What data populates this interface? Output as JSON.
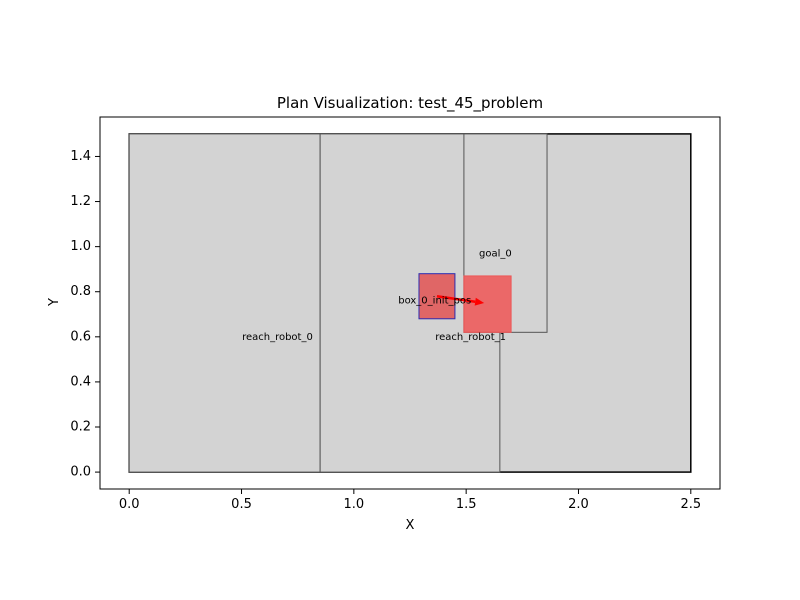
{
  "chart_data": {
    "type": "diagram",
    "title": "Plan Visualization: test_45_problem",
    "xlabel": "X",
    "ylabel": "Y",
    "xlim": [
      -0.13,
      2.63
    ],
    "ylim": [
      -0.075,
      1.575
    ],
    "xticks": [
      0.0,
      0.5,
      1.0,
      1.5,
      2.0,
      2.5
    ],
    "xtick_labels": [
      "0.0",
      "0.5",
      "1.0",
      "1.5",
      "2.0",
      "2.5"
    ],
    "yticks": [
      0.0,
      0.2,
      0.4,
      0.6,
      0.8,
      1.0,
      1.2,
      1.4
    ],
    "ytick_labels": [
      "0.0",
      "0.2",
      "0.4",
      "0.6",
      "0.8",
      "1.0",
      "1.2",
      "1.4"
    ],
    "grid": false,
    "regions": [
      {
        "id": "workspace",
        "label": "",
        "x0": 0.0,
        "y0": 0.0,
        "x1": 2.5,
        "y1": 1.5,
        "fill": "#d3d3d3",
        "stroke": "#000000"
      },
      {
        "id": "reach_robot_0",
        "label": "reach_robot_0",
        "x0": 0.0,
        "y0": 0.0,
        "x1": 0.85,
        "y1": 1.5,
        "fill": "#d3d3d3",
        "stroke": "#555555"
      },
      {
        "id": "reach_robot_1",
        "label": "reach_robot_1",
        "x0": 0.85,
        "y0": 0.0,
        "x1": 1.65,
        "y1": 1.5,
        "fill": "#d3d3d3",
        "stroke": "#555555"
      },
      {
        "id": "goal_0",
        "label": "goal_0",
        "x0": 1.49,
        "y0": 0.62,
        "x1": 1.86,
        "y1": 1.5,
        "fill": "#d3d3d3",
        "stroke": "#555555"
      }
    ],
    "objects": [
      {
        "id": "box_0_init_pos",
        "label": "box_0_init_pos",
        "x0": 1.29,
        "y0": 0.68,
        "x1": 1.45,
        "y1": 0.88,
        "fill": "#e06666",
        "stroke": "#2b2bb0"
      },
      {
        "id": "box_0_goal_pos",
        "label": "",
        "x0": 1.49,
        "y0": 0.62,
        "x1": 1.7,
        "y1": 0.87,
        "fill": "#ee5555",
        "stroke": "#ee5555",
        "opacity": 0.85
      }
    ],
    "arrows": [
      {
        "id": "box_0_move",
        "from": [
          1.37,
          0.78
        ],
        "to": [
          1.58,
          0.75
        ],
        "color": "#ff0000"
      }
    ],
    "labels": [
      {
        "text": "reach_robot_0",
        "x": 0.66,
        "y": 0.6
      },
      {
        "text": "reach_robot_1",
        "x": 1.52,
        "y": 0.6
      },
      {
        "text": "goal_0",
        "x": 1.63,
        "y": 0.97
      },
      {
        "text": "box_0_init_pos",
        "x": 1.36,
        "y": 0.76
      }
    ]
  }
}
